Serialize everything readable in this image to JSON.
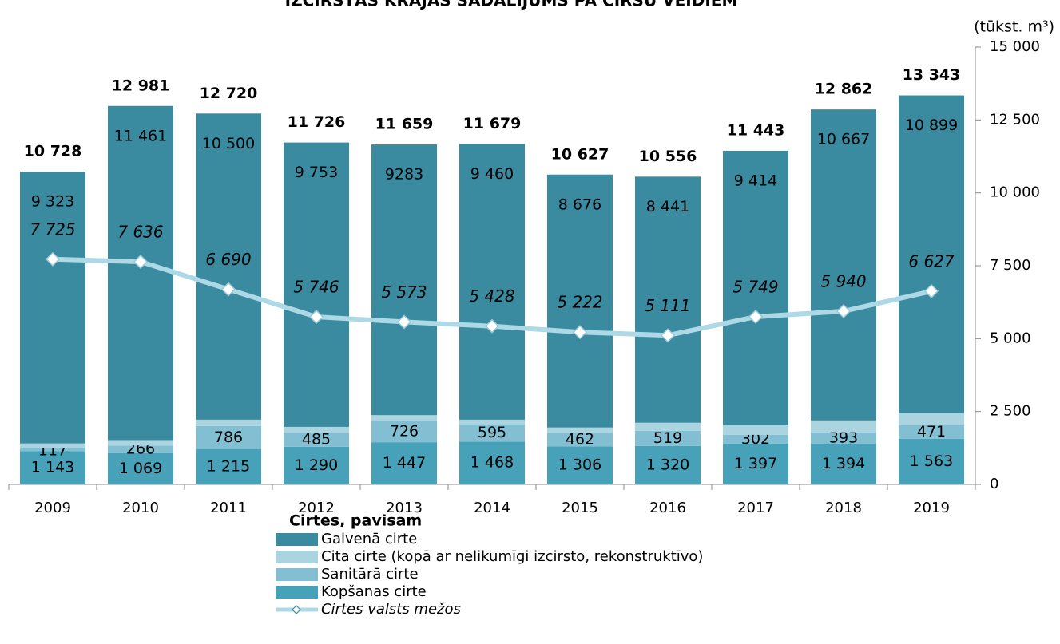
{
  "chart_data": {
    "type": "stacked_bar_line",
    "title": "IZCIRSTĀS KRĀJAS SADALĪJUMS PA CIRŠU VEIDIEM",
    "y_label": "(tūkst. m³)",
    "categories": [
      "2009",
      "2010",
      "2011",
      "2012",
      "2013",
      "2014",
      "2015",
      "2016",
      "2017",
      "2018",
      "2019"
    ],
    "ylim": [
      0,
      15000
    ],
    "yticks": [
      0,
      {
        "value": 2500,
        "label": "2 500"
      },
      {
        "value": 5000,
        "label": "5 000"
      },
      {
        "value": 7500,
        "label": "7 500"
      },
      {
        "value": 10000,
        "label": "10 000"
      },
      {
        "value": 12500,
        "label": "12 500"
      },
      {
        "value": 15000,
        "label": "15 000"
      }
    ],
    "totals": {
      "name": "Cirtes, pavisam",
      "values": [
        10728,
        12981,
        12720,
        11726,
        11659,
        11679,
        10627,
        10556,
        11443,
        12862,
        13343
      ],
      "value_labels": [
        "10 728",
        "12 981",
        "12 720",
        "11 726",
        "11 659",
        "11 679",
        "10 627",
        "10 556",
        "11 443",
        "12 862",
        "13 343"
      ]
    },
    "series": [
      {
        "name": "Galvenā cirte",
        "color": "#3a8aa0",
        "type": "bar",
        "values": [
          9323,
          11461,
          10500,
          9753,
          9283,
          9460,
          8676,
          8441,
          9414,
          10667,
          10899
        ],
        "value_labels": [
          "9 323",
          "11 461",
          "10 500",
          "9 753",
          "9283",
          "9 460",
          "8 676",
          "8 441",
          "9 414",
          "10 667",
          "10 899"
        ]
      },
      {
        "name": "Cita cirte (kopā ar nelikumīgi izcirsto, rekonstruktīvo)",
        "color": "#a9d4e0",
        "type": "bar",
        "values": [
          145,
          185,
          219,
          198,
          203,
          156,
          183,
          276,
          330,
          407,
          410
        ]
      },
      {
        "name": "Sanitārā cirte",
        "color": "#82bfd2",
        "type": "bar",
        "values": [
          117,
          266,
          786,
          485,
          726,
          595,
          462,
          519,
          302,
          393,
          471
        ]
      },
      {
        "name": "Kopšanas cirte",
        "color": "#47a1b9",
        "type": "bar",
        "values": [
          1143,
          1069,
          1215,
          1290,
          1447,
          1468,
          1306,
          1320,
          1397,
          1394,
          1563
        ],
        "value_labels": [
          "1 143",
          "1 069",
          "1 215",
          "1 290",
          "1 447",
          "1 468",
          "1 306",
          "1 320",
          "1 397",
          "1 394",
          "1 563"
        ]
      },
      {
        "name": "Cirtes valsts mežos",
        "color": "#add8e6",
        "type": "line",
        "values": [
          7725,
          7636,
          6690,
          5746,
          5573,
          5428,
          5222,
          5111,
          5749,
          5940,
          6627
        ],
        "value_labels": [
          "7 725",
          "7 636",
          "6 690",
          "5 746",
          "5 573",
          "5 428",
          "5 222",
          "5 111",
          "5 749",
          "5 940",
          "6 627"
        ]
      }
    ]
  }
}
